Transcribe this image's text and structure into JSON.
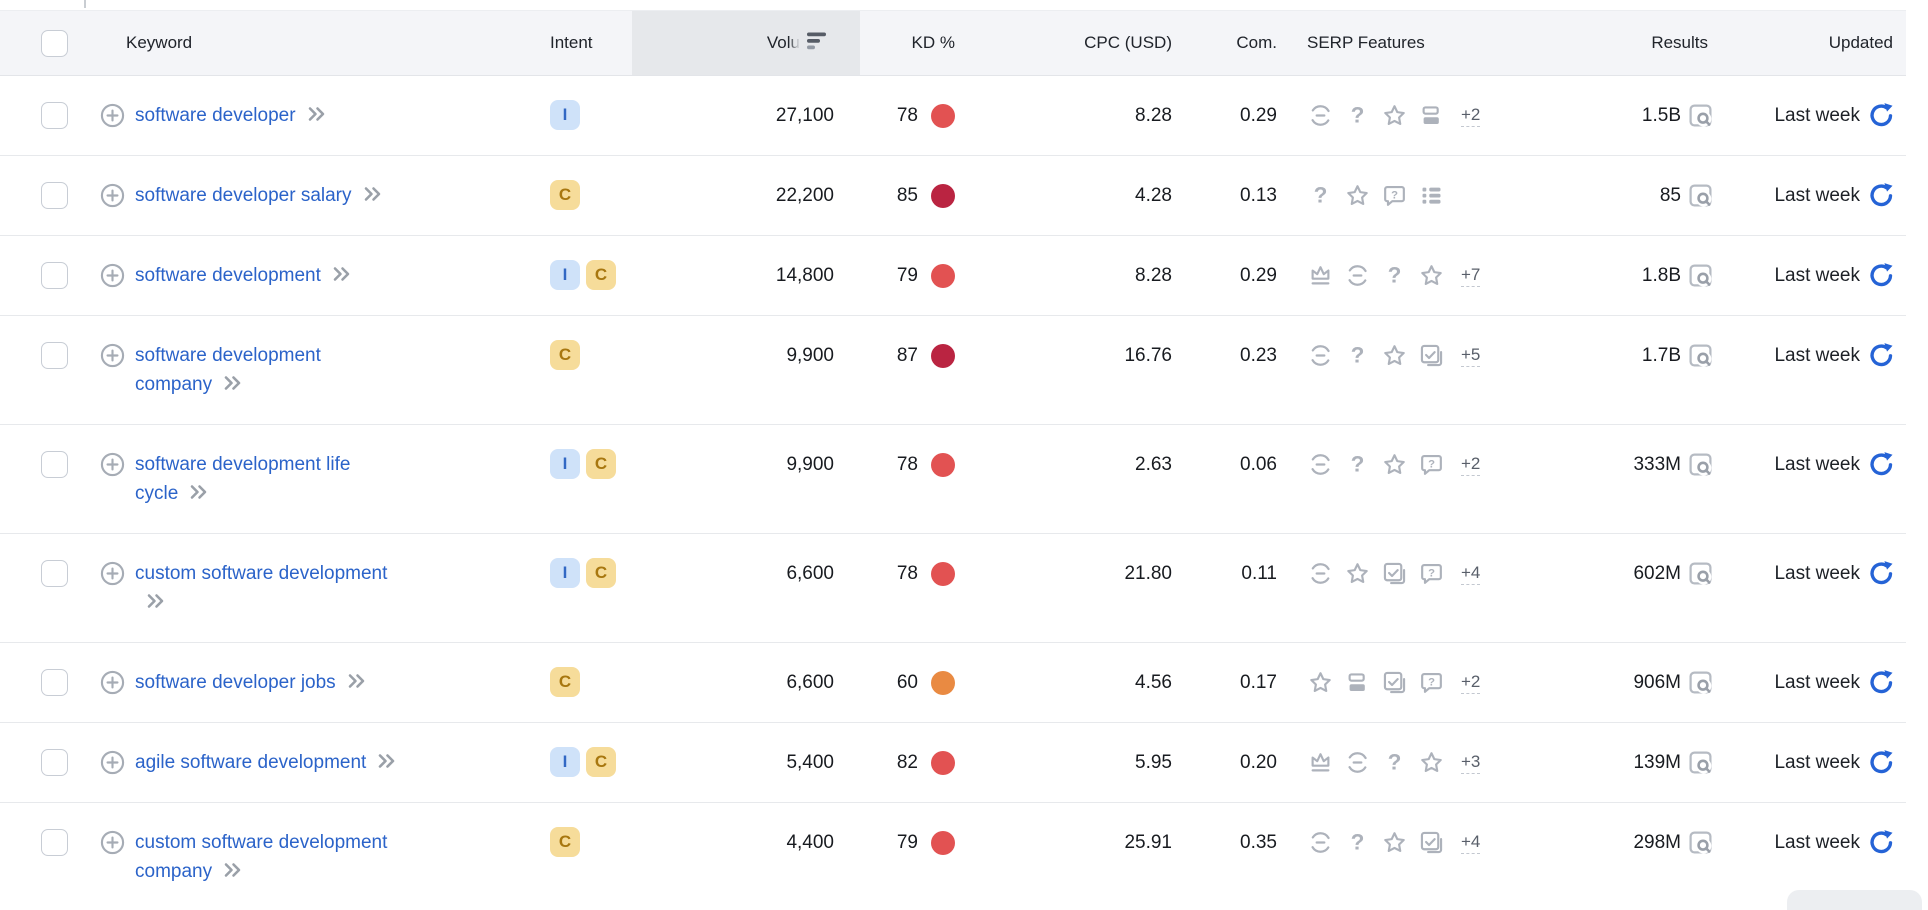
{
  "header": {
    "keyword": "Keyword",
    "intent": "Intent",
    "volume": "Volu",
    "kd": "KD %",
    "cpc": "CPC (USD)",
    "com": "Com.",
    "serp": "SERP Features",
    "results": "Results",
    "updated": "Updated",
    "sorted_column": "volume"
  },
  "colors": {
    "link_blue": "#2b63c9",
    "refresh_blue": "#2563d6",
    "kd_hard": "#e25252",
    "kd_very_hard": "#ba2441",
    "kd_possible": "#e98a42",
    "intent_i_bg": "#cfe2f9",
    "intent_i_text": "#3268c4",
    "intent_c_bg": "#f6dc9a",
    "intent_c_text": "#a8770f",
    "icon_gray": "#adb2bb"
  },
  "rows": [
    {
      "keyword": "software developer",
      "lines": [
        "software developer"
      ],
      "intents": [
        "I"
      ],
      "volume": "27,100",
      "kd": "78",
      "kd_level": "hard",
      "cpc": "8.28",
      "com": "0.29",
      "serp_features": [
        "link",
        "question",
        "star",
        "layout"
      ],
      "serp_more": "+2",
      "results": "1.5B",
      "updated": "Last week"
    },
    {
      "keyword": "software developer salary",
      "lines": [
        "software developer salary"
      ],
      "intents": [
        "C"
      ],
      "volume": "22,200",
      "kd": "85",
      "kd_level": "very_hard",
      "cpc": "4.28",
      "com": "0.13",
      "serp_features": [
        "question",
        "star",
        "bubble-question",
        "list"
      ],
      "serp_more": "",
      "results": "85",
      "updated": "Last week"
    },
    {
      "keyword": "software development",
      "lines": [
        "software development"
      ],
      "intents": [
        "I",
        "C"
      ],
      "volume": "14,800",
      "kd": "79",
      "kd_level": "hard",
      "cpc": "8.28",
      "com": "0.29",
      "serp_features": [
        "crown",
        "link",
        "question",
        "star"
      ],
      "serp_more": "+7",
      "results": "1.8B",
      "updated": "Last week"
    },
    {
      "keyword": "software development company",
      "lines": [
        "software development",
        "company"
      ],
      "intents": [
        "C"
      ],
      "volume": "9,900",
      "kd": "87",
      "kd_level": "very_hard",
      "cpc": "16.76",
      "com": "0.23",
      "serp_features": [
        "link",
        "question",
        "star",
        "image"
      ],
      "serp_more": "+5",
      "results": "1.7B",
      "updated": "Last week"
    },
    {
      "keyword": "software development life cycle",
      "lines": [
        "software development life",
        "cycle"
      ],
      "intents": [
        "I",
        "C"
      ],
      "volume": "9,900",
      "kd": "78",
      "kd_level": "hard",
      "cpc": "2.63",
      "com": "0.06",
      "serp_features": [
        "link",
        "question",
        "star",
        "bubble-question"
      ],
      "serp_more": "+2",
      "results": "333M",
      "updated": "Last week"
    },
    {
      "keyword": "custom software development",
      "lines": [
        "custom software development",
        ""
      ],
      "intents": [
        "I",
        "C"
      ],
      "volume": "6,600",
      "kd": "78",
      "kd_level": "hard",
      "cpc": "21.80",
      "com": "0.11",
      "serp_features": [
        "link",
        "star",
        "image",
        "bubble-question"
      ],
      "serp_more": "+4",
      "results": "602M",
      "updated": "Last week"
    },
    {
      "keyword": "software developer jobs",
      "lines": [
        "software developer jobs"
      ],
      "intents": [
        "C"
      ],
      "volume": "6,600",
      "kd": "60",
      "kd_level": "possible",
      "cpc": "4.56",
      "com": "0.17",
      "serp_features": [
        "star",
        "layout",
        "image",
        "bubble-question"
      ],
      "serp_more": "+2",
      "results": "906M",
      "updated": "Last week"
    },
    {
      "keyword": "agile software development",
      "lines": [
        "agile software development"
      ],
      "intents": [
        "I",
        "C"
      ],
      "volume": "5,400",
      "kd": "82",
      "kd_level": "hard",
      "cpc": "5.95",
      "com": "0.20",
      "serp_features": [
        "crown",
        "link",
        "question",
        "star"
      ],
      "serp_more": "+3",
      "results": "139M",
      "updated": "Last week"
    },
    {
      "keyword": "custom software development company",
      "lines": [
        "custom software development",
        "company"
      ],
      "intents": [
        "C"
      ],
      "volume": "4,400",
      "kd": "79",
      "kd_level": "hard",
      "cpc": "25.91",
      "com": "0.35",
      "serp_features": [
        "link",
        "question",
        "star",
        "image"
      ],
      "serp_more": "+4",
      "results": "298M",
      "updated": "Last week"
    }
  ]
}
